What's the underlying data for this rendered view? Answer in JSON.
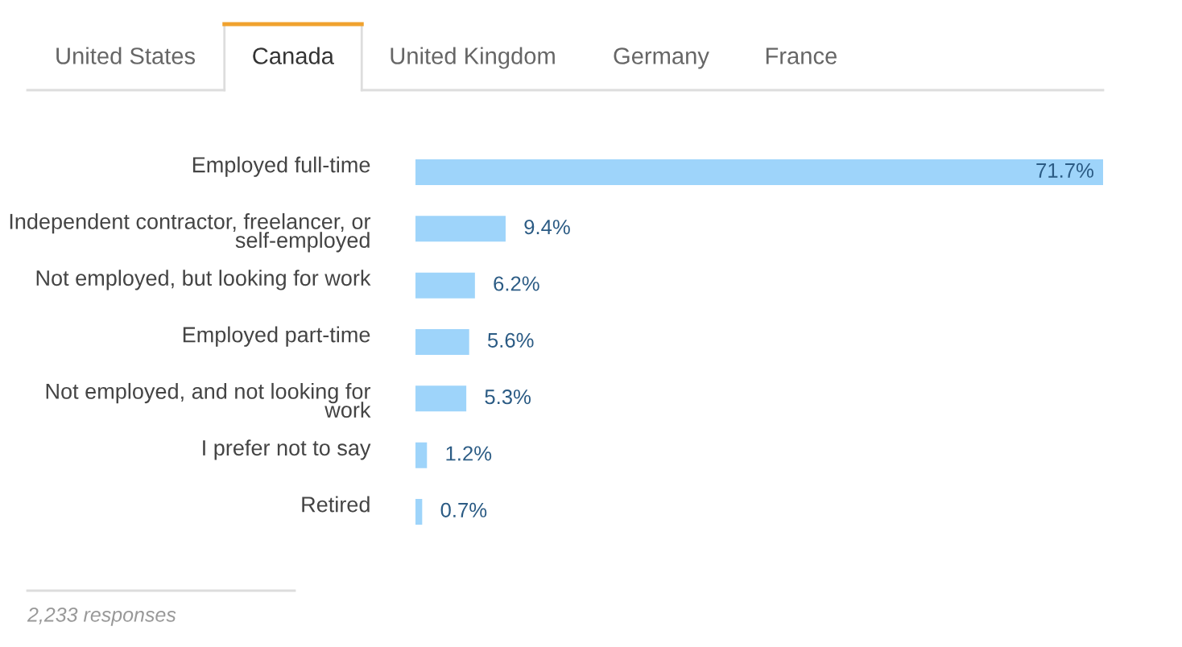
{
  "chart_data": {
    "type": "bar",
    "orientation": "horizontal",
    "categories": [
      "Employed full-time",
      "Independent contractor, freelancer, or self-employed",
      "Not employed, but looking for work",
      "Employed part-time",
      "Not employed, and not looking for work",
      "I prefer not to say",
      "Retired"
    ],
    "values": [
      71.7,
      9.4,
      6.2,
      5.6,
      5.3,
      1.2,
      0.7
    ],
    "value_labels": [
      "71.7%",
      "9.4%",
      "6.2%",
      "5.6%",
      "5.3%",
      "1.2%",
      "0.7%"
    ],
    "color": "#9ed4fa",
    "tick_labels": "y",
    "annotations": [
      "United States",
      "Canada",
      "United Kingdom",
      "Germany",
      "France",
      "2,233 responses"
    ]
  }
}
